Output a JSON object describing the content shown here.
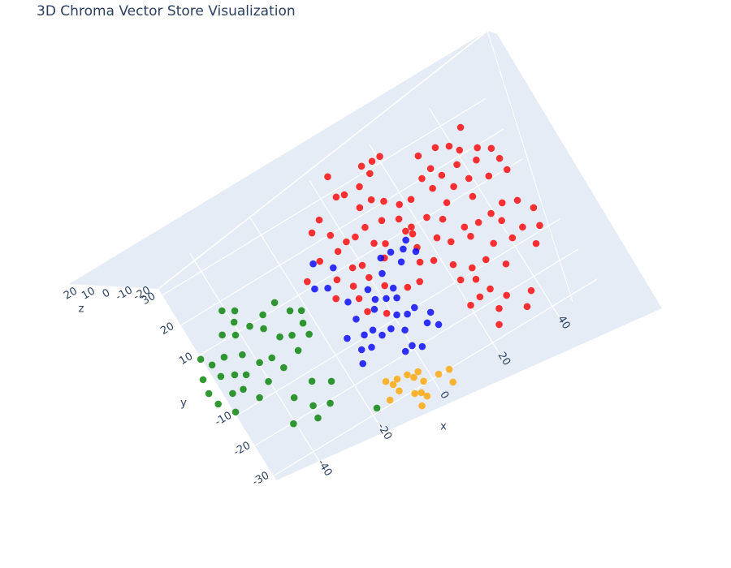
{
  "chart_data": {
    "type": "scatter3d",
    "title": "3D Chroma Vector Store Visualization",
    "xlabel": "x",
    "ylabel": "y",
    "zlabel": "z",
    "xlim": [
      -60,
      55
    ],
    "ylim": [
      -36,
      36
    ],
    "zlim": [
      -25,
      25
    ],
    "xticks": [
      -40,
      -20,
      0,
      20,
      40
    ],
    "yticks": [
      -30,
      -20,
      -10,
      10,
      20,
      30
    ],
    "zticks": [
      -20,
      -10,
      0,
      10,
      20
    ],
    "grid": true,
    "opacity": 0.8,
    "series": [
      {
        "color": "red",
        "x": [
          44.9,
          38.7,
          36.1,
          45.6,
          41.3,
          48.4,
          49.5,
          50.1,
          43.3,
          38.3,
          33.1,
          30.8,
          30.7,
          27.5,
          21.0,
          17.5,
          14.8,
          16.2,
          4.7,
          11.3,
          6.5,
          3.6,
          12.7,
          14.8,
          18.5,
          7.5,
          21.8,
          29.2,
          33.8,
          39.1,
          44.4,
          29.6,
          37.8,
          39.0,
          43.7,
          46.9,
          50.3,
          49.6,
          44.4,
          40.7,
          34.9,
          30.2,
          27.1,
          22.8,
          18.0,
          15.3,
          11.5,
          6.9,
          2.3,
          -0.2,
          -3.4,
          -7.7,
          -2.6,
          6.1,
          9.2,
          16.4,
          22.3,
          25.6,
          30.4,
          35.3,
          40.8,
          45.1,
          35.7,
          30.8,
          26.6,
          21.6,
          18.1,
          16.5,
          15.4,
          6.6,
          0.2,
          -3.1,
          -3.2,
          -9.8,
          -15.5,
          -8.9,
          -5.3,
          0.3,
          2.1,
          11.6,
          14.7,
          21.3,
          26.1,
          27.4,
          30.8,
          33.2,
          37.2,
          27.2,
          24.0,
          20.4,
          24.0,
          7.3,
          -5.2,
          -11.5,
          -5.4,
          -1.9
        ],
        "y": [
          26.6,
          24.1,
          25.2,
          19.4,
          21.2,
          17.5,
          13.5,
          9.4,
          16.7,
          18.2,
          17.8,
          21.4,
          25.7,
          20.1,
          31.4,
          31.9,
          31.9,
          28.6,
          34.5,
          27.2,
          27.4,
          28.4,
          22.0,
          20.2,
          16.9,
          22.5,
          16.6,
          15.8,
          13.6,
          13.1,
          10.7,
          10.8,
          7.9,
          1.5,
          2.2,
          1.1,
          -3.4,
          -8.9,
          -6.3,
          -1.9,
          1.0,
          2.3,
          6.8,
          10.0,
          9.7,
          14.0,
          15.8,
          16.3,
          15.9,
          15.8,
          25.0,
          23.3,
          19.4,
          11.5,
          9.5,
          8.4,
          3.5,
          0.2,
          -0.9,
          -6.2,
          -7.7,
          -12.2,
          -13.3,
          -8.9,
          -9.1,
          -5.0,
          -1.5,
          3.8,
          9.9,
          6.3,
          7.7,
          8.9,
          14.4,
          15.1,
          11.8,
          8.4,
          4.1,
          3.6,
          -0.2,
          -4.6,
          0.0,
          -9.9,
          -12.6,
          -16.6,
          -20.8,
          -26.0,
          -23.1,
          -23.0,
          -26.4,
          -17.8,
          -17.2,
          -3.9,
          -0.1,
          3.7,
          -4.3,
          -7.0
        ],
        "z": [
          2,
          -4,
          6,
          -1,
          3,
          -6,
          0,
          5,
          -3,
          1,
          2,
          -4,
          6,
          -1,
          3,
          -6,
          0,
          5,
          -3,
          1,
          2,
          -4,
          6,
          -1,
          3,
          -6,
          0,
          5,
          -3,
          1,
          2,
          -4,
          6,
          -1,
          3,
          -6,
          0,
          5,
          -3,
          1,
          2,
          -4,
          6,
          -1,
          3,
          -6,
          0,
          5,
          -3,
          1,
          2,
          -4,
          6,
          -1,
          3,
          -6,
          0,
          5,
          -3,
          1,
          2,
          -4,
          6,
          -1,
          3,
          -6,
          0,
          5,
          -3,
          1,
          2,
          -4,
          6,
          -1,
          3,
          -6,
          0,
          5,
          -3,
          1,
          2,
          -4,
          6,
          -1,
          3,
          -6,
          0,
          5,
          -3,
          1,
          2,
          -4,
          6,
          -1,
          3,
          -6
        ]
      },
      {
        "color": "blue",
        "x": [
          14.1,
          12.5,
          9.3,
          5.4,
          15.1,
          -11.2,
          -7.9,
          10.2,
          3.5,
          -11.5,
          -15.4,
          -8.9,
          -1.9,
          3.9,
          -2.0,
          1.3,
          3.0,
          -3.5,
          -9.7,
          1.2,
          3.3,
          6.4,
          9.9,
          6.9,
          9.6,
          -14.2,
          -10.5,
          -7.0,
          -5.8,
          -2.3,
          0.3,
          -10.0,
          -12.5,
          -2.7,
          2.3,
          -14.2,
          -0.5
        ],
        "y": [
          7.7,
          5.7,
          6.6,
          7.0,
          3.3,
          15.1,
          11.8,
          2.8,
          3.0,
          7.2,
          9.3,
          1.0,
          0.9,
          -2.1,
          -2.3,
          -4.0,
          -4.8,
          -4.7,
          -4.2,
          -9.4,
          -10.4,
          -10.1,
          -13.8,
          -15.5,
          -17.7,
          -7.9,
          -9.0,
          -9.5,
          -11.9,
          -11.9,
          -13.9,
          -13.4,
          -12.7,
          -19.2,
          -20.6,
          -16.3,
          -18.6
        ],
        "z": [
          -3,
          1,
          4,
          -2,
          0,
          5,
          -5,
          2,
          -1,
          3,
          -3,
          1,
          4,
          -2,
          0,
          5,
          -5,
          2,
          -1,
          3,
          -3,
          1,
          4,
          -2,
          0,
          5,
          -5,
          2,
          -1,
          3,
          -3,
          1,
          4,
          -2,
          0,
          5,
          -5
        ]
      },
      {
        "color": "green",
        "x": [
          -40.8,
          -38.0,
          -31.3,
          -26.9,
          -24.8,
          -21.4,
          -39.3,
          -36.6,
          -33.8,
          -30.7,
          -27.5,
          -23.3,
          -44.2,
          -41.3,
          -53.8,
          -51.3,
          -47.0,
          -42.7,
          -39.9,
          -35.8,
          -34.4,
          -28.6,
          -23.0,
          -55.9,
          -51.5,
          -47.3,
          -44.3,
          -40.4,
          -51.1,
          -47.5,
          -44.8,
          -56.8,
          -55.6,
          -52.9,
          -36.9,
          -29.5,
          -24.6,
          -33.2,
          -28.9,
          -33.7,
          -40.5,
          -18.2
        ],
        "y": [
          17.4,
          15.7,
          10.3,
          11.7,
          7.7,
          5.7,
          12.7,
          9.7,
          7.2,
          2.6,
          1.2,
          2.7,
          11.4,
          9.6,
          9.1,
          5.7,
          5.7,
          3.9,
          -0.4,
          -1.3,
          -5.4,
          -3.2,
          -1.2,
          3.6,
          2.0,
          0.0,
          -1.8,
          -6.4,
          -3.9,
          -4.7,
          -9.1,
          -0.5,
          -4.7,
          -9.0,
          -13.9,
          -12.9,
          -15.9,
          -18.8,
          -20.6,
          -22.6,
          -20.4,
          -28.7
        ],
        "z": [
          1,
          -2,
          3,
          0,
          -4,
          2,
          4,
          -1,
          -3,
          1,
          1,
          -2,
          3,
          0,
          -4,
          2,
          4,
          -1,
          -3,
          1,
          1,
          -2,
          3,
          0,
          -4,
          2,
          4,
          -1,
          -3,
          1,
          1,
          -2,
          3,
          0,
          -4,
          2,
          4,
          -1,
          -3,
          1,
          1,
          -2
        ]
      },
      {
        "color": "orange",
        "x": [
          -11.8,
          -8.5,
          -10.7,
          -5.5,
          -2.6,
          -4.1,
          -2.9,
          2.1,
          5.6,
          4.2,
          -9.9,
          -6.7,
          -4.6,
          -7.0,
          -13.6,
          -3.8
        ],
        "y": [
          -23.7,
          -24.9,
          -25.4,
          -25.3,
          -26.0,
          -27.0,
          -29.0,
          -29.7,
          -30.2,
          -33.6,
          -28.0,
          -30.8,
          -31.8,
          -34.7,
          -28.8,
          -33.4
        ],
        "z": [
          0,
          2,
          -2,
          1,
          -1,
          3,
          -3,
          0,
          2,
          -2,
          1,
          -1,
          3,
          -3,
          0,
          2
        ]
      }
    ]
  }
}
